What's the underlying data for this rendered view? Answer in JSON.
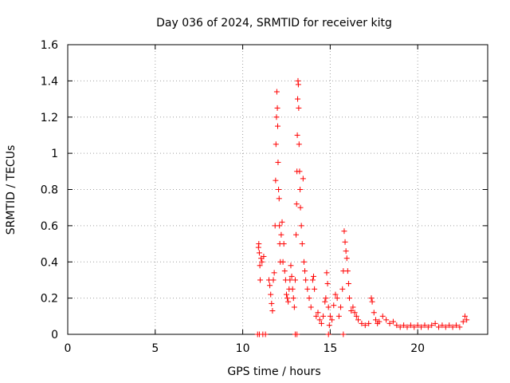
{
  "chart_data": {
    "type": "scatter",
    "title": "Day 036 of 2024, SRMTID for receiver kitg",
    "xlabel": "GPS time / hours",
    "ylabel": "SRMTID / TECUs",
    "xlim": [
      0,
      24
    ],
    "ylim": [
      0,
      1.6
    ],
    "xticks": [
      "0",
      "5",
      "10",
      "15",
      "20"
    ],
    "yticks": [
      "0",
      "0.2",
      "0.4",
      "0.6",
      "0.8",
      "1",
      "1.2",
      "1.4",
      "1.6"
    ],
    "grid": true,
    "marker": "+",
    "color": "#ff0000",
    "series": [
      {
        "name": "SRMTID",
        "points": [
          [
            10.85,
            0.0
          ],
          [
            10.95,
            0.0
          ],
          [
            11.15,
            0.0
          ],
          [
            11.3,
            0.0
          ],
          [
            13.0,
            0.0
          ],
          [
            13.1,
            0.0
          ],
          [
            14.9,
            0.0
          ],
          [
            15.75,
            0.0
          ],
          [
            10.9,
            0.48
          ],
          [
            10.92,
            0.5
          ],
          [
            10.95,
            0.45
          ],
          [
            10.98,
            0.38
          ],
          [
            11.0,
            0.3
          ],
          [
            11.05,
            0.42
          ],
          [
            11.1,
            0.4
          ],
          [
            11.2,
            0.43
          ],
          [
            11.5,
            0.3
          ],
          [
            11.55,
            0.27
          ],
          [
            11.6,
            0.22
          ],
          [
            11.65,
            0.17
          ],
          [
            11.7,
            0.13
          ],
          [
            11.75,
            0.3
          ],
          [
            11.8,
            0.34
          ],
          [
            11.85,
            0.6
          ],
          [
            11.88,
            0.85
          ],
          [
            11.9,
            1.05
          ],
          [
            11.93,
            1.2
          ],
          [
            11.95,
            1.34
          ],
          [
            11.98,
            1.25
          ],
          [
            12.0,
            1.15
          ],
          [
            12.02,
            0.95
          ],
          [
            12.05,
            0.8
          ],
          [
            12.08,
            0.75
          ],
          [
            12.1,
            0.6
          ],
          [
            12.12,
            0.5
          ],
          [
            12.15,
            0.4
          ],
          [
            12.2,
            0.55
          ],
          [
            12.25,
            0.62
          ],
          [
            12.3,
            0.4
          ],
          [
            12.35,
            0.5
          ],
          [
            12.4,
            0.35
          ],
          [
            12.45,
            0.3
          ],
          [
            12.5,
            0.22
          ],
          [
            12.55,
            0.2
          ],
          [
            12.6,
            0.18
          ],
          [
            12.65,
            0.25
          ],
          [
            12.7,
            0.3
          ],
          [
            12.75,
            0.38
          ],
          [
            12.8,
            0.32
          ],
          [
            12.85,
            0.25
          ],
          [
            12.9,
            0.2
          ],
          [
            12.95,
            0.15
          ],
          [
            13.0,
            0.3
          ],
          [
            13.05,
            0.55
          ],
          [
            13.08,
            0.72
          ],
          [
            13.1,
            0.9
          ],
          [
            13.12,
            1.1
          ],
          [
            13.14,
            1.3
          ],
          [
            13.16,
            1.4
          ],
          [
            13.18,
            1.38
          ],
          [
            13.2,
            1.25
          ],
          [
            13.22,
            1.05
          ],
          [
            13.25,
            0.9
          ],
          [
            13.28,
            0.8
          ],
          [
            13.3,
            0.7
          ],
          [
            13.35,
            0.6
          ],
          [
            13.4,
            0.5
          ],
          [
            13.45,
            0.86
          ],
          [
            13.5,
            0.4
          ],
          [
            13.55,
            0.35
          ],
          [
            13.6,
            0.3
          ],
          [
            13.7,
            0.25
          ],
          [
            13.8,
            0.2
          ],
          [
            13.9,
            0.15
          ],
          [
            14.0,
            0.3
          ],
          [
            14.05,
            0.32
          ],
          [
            14.1,
            0.25
          ],
          [
            14.2,
            0.1
          ],
          [
            14.3,
            0.12
          ],
          [
            14.4,
            0.08
          ],
          [
            14.5,
            0.06
          ],
          [
            14.6,
            0.1
          ],
          [
            14.7,
            0.18
          ],
          [
            14.75,
            0.2
          ],
          [
            14.8,
            0.34
          ],
          [
            14.85,
            0.28
          ],
          [
            14.9,
            0.15
          ],
          [
            14.95,
            0.05
          ],
          [
            15.0,
            0.1
          ],
          [
            15.1,
            0.08
          ],
          [
            15.2,
            0.16
          ],
          [
            15.3,
            0.22
          ],
          [
            15.4,
            0.2
          ],
          [
            15.5,
            0.1
          ],
          [
            15.6,
            0.15
          ],
          [
            15.7,
            0.25
          ],
          [
            15.75,
            0.35
          ],
          [
            15.8,
            0.57
          ],
          [
            15.85,
            0.51
          ],
          [
            15.9,
            0.46
          ],
          [
            15.95,
            0.42
          ],
          [
            16.0,
            0.35
          ],
          [
            16.05,
            0.28
          ],
          [
            16.1,
            0.2
          ],
          [
            16.2,
            0.13
          ],
          [
            16.3,
            0.15
          ],
          [
            16.4,
            0.12
          ],
          [
            16.5,
            0.1
          ],
          [
            16.6,
            0.08
          ],
          [
            16.8,
            0.06
          ],
          [
            17.0,
            0.05
          ],
          [
            17.2,
            0.06
          ],
          [
            17.35,
            0.2
          ],
          [
            17.4,
            0.18
          ],
          [
            17.5,
            0.12
          ],
          [
            17.6,
            0.08
          ],
          [
            17.7,
            0.06
          ],
          [
            17.8,
            0.07
          ],
          [
            18.0,
            0.1
          ],
          [
            18.2,
            0.08
          ],
          [
            18.4,
            0.06
          ],
          [
            18.6,
            0.07
          ],
          [
            18.8,
            0.05
          ],
          [
            19.0,
            0.04
          ],
          [
            19.2,
            0.05
          ],
          [
            19.4,
            0.04
          ],
          [
            19.6,
            0.05
          ],
          [
            19.8,
            0.04
          ],
          [
            20.0,
            0.05
          ],
          [
            20.2,
            0.04
          ],
          [
            20.4,
            0.05
          ],
          [
            20.6,
            0.04
          ],
          [
            20.8,
            0.05
          ],
          [
            21.0,
            0.06
          ],
          [
            21.2,
            0.04
          ],
          [
            21.4,
            0.05
          ],
          [
            21.6,
            0.04
          ],
          [
            21.8,
            0.05
          ],
          [
            22.0,
            0.04
          ],
          [
            22.2,
            0.05
          ],
          [
            22.4,
            0.04
          ],
          [
            22.6,
            0.07
          ],
          [
            22.7,
            0.1
          ],
          [
            22.8,
            0.08
          ]
        ]
      }
    ]
  }
}
